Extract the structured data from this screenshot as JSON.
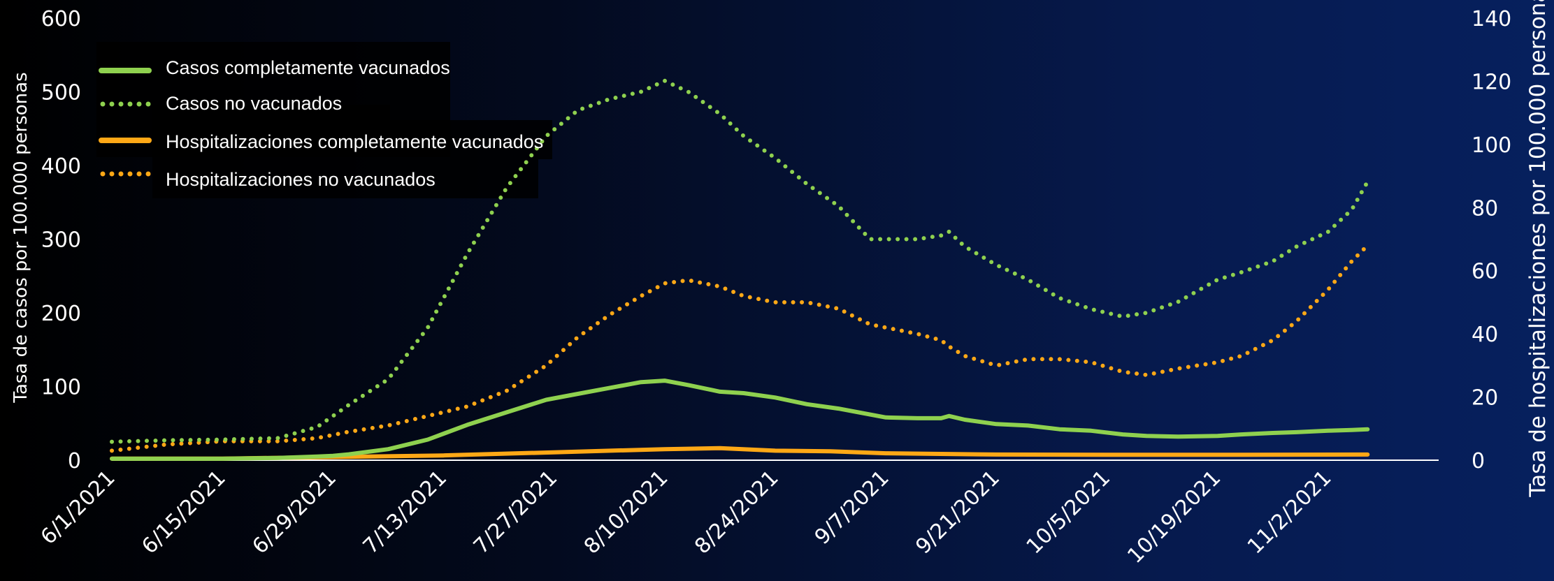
{
  "chart_data": {
    "type": "line",
    "ylabel": "Tasa de casos por 100.000 personas",
    "y2label": "Tasa de hospitalizaciones por 100.000 personas",
    "ylim": [
      0,
      600
    ],
    "y2lim": [
      0,
      140
    ],
    "yticks": [
      "0",
      "100",
      "200",
      "300",
      "400",
      "500",
      "600"
    ],
    "y2ticks": [
      "0",
      "20",
      "40",
      "60",
      "80",
      "100",
      "120",
      "140"
    ],
    "xrange_days": [
      0,
      168
    ],
    "xticks": [
      {
        "day": 0,
        "label": "6/1/2021"
      },
      {
        "day": 14,
        "label": "6/15/2021"
      },
      {
        "day": 28,
        "label": "6/29/2021"
      },
      {
        "day": 42,
        "label": "7/13/2021"
      },
      {
        "day": 56,
        "label": "7/27/2021"
      },
      {
        "day": 70,
        "label": "8/10/2021"
      },
      {
        "day": 84,
        "label": "8/24/2021"
      },
      {
        "day": 98,
        "label": "9/7/2021"
      },
      {
        "day": 112,
        "label": "9/21/2021"
      },
      {
        "day": 126,
        "label": "10/5/2021"
      },
      {
        "day": 140,
        "label": "10/19/2021"
      },
      {
        "day": 154,
        "label": "11/2/2021"
      }
    ],
    "grid": false,
    "legend_position": "top-left",
    "series": [
      {
        "name": "Casos completamente vacunados",
        "axis": "left",
        "color": "#8fd14f",
        "style": "solid",
        "x": [
          0,
          7,
          14,
          21,
          26,
          28,
          30,
          35,
          40,
          45,
          50,
          55,
          59,
          63,
          67,
          70,
          73,
          77,
          80,
          84,
          88,
          92,
          96,
          98,
          102,
          105,
          106,
          108,
          112,
          116,
          120,
          124,
          128,
          131,
          135,
          140,
          143,
          147,
          150,
          154,
          157,
          159
        ],
        "y": [
          2,
          2,
          2,
          3,
          5,
          6,
          8,
          15,
          28,
          48,
          65,
          82,
          90,
          98,
          106,
          108,
          102,
          93,
          91,
          85,
          76,
          70,
          62,
          58,
          57,
          57,
          60,
          55,
          49,
          47,
          42,
          40,
          35,
          33,
          32,
          33,
          35,
          37,
          38,
          40,
          41,
          42
        ]
      },
      {
        "name": "Casos no vacunados",
        "axis": "left",
        "color": "#8fd14f",
        "style": "dotted",
        "x": [
          0,
          7,
          14,
          21,
          26,
          28,
          30,
          35,
          40,
          45,
          50,
          55,
          59,
          63,
          67,
          70,
          73,
          77,
          80,
          84,
          88,
          92,
          96,
          98,
          102,
          105,
          106,
          108,
          112,
          116,
          120,
          124,
          128,
          131,
          135,
          140,
          143,
          147,
          150,
          154,
          157,
          159
        ],
        "y": [
          25,
          27,
          28,
          30,
          45,
          60,
          75,
          110,
          180,
          280,
          370,
          440,
          475,
          490,
          500,
          515,
          500,
          470,
          440,
          410,
          375,
          345,
          300,
          300,
          300,
          305,
          310,
          290,
          265,
          245,
          220,
          205,
          195,
          200,
          215,
          245,
          255,
          270,
          290,
          310,
          340,
          378
        ]
      },
      {
        "name": "Hospitalizaciones completamente vacunados",
        "axis": "right",
        "color": "#ffa816",
        "style": "solid",
        "x": [
          0,
          14,
          28,
          42,
          56,
          70,
          77,
          84,
          91,
          98,
          112,
          126,
          140,
          159
        ],
        "y": [
          0.5,
          0.5,
          1,
          1.5,
          2.5,
          3.5,
          3.8,
          3,
          2.8,
          2.2,
          1.8,
          1.7,
          1.7,
          1.8
        ]
      },
      {
        "name": "Hospitalizaciones no vacunados",
        "axis": "right",
        "color": "#ffa816",
        "style": "dotted",
        "x": [
          0,
          7,
          14,
          21,
          26,
          28,
          30,
          35,
          40,
          45,
          50,
          55,
          59,
          63,
          67,
          70,
          73,
          77,
          80,
          84,
          88,
          92,
          96,
          98,
          102,
          105,
          106,
          108,
          112,
          116,
          120,
          124,
          128,
          131,
          135,
          140,
          143,
          147,
          150,
          154,
          157,
          159
        ],
        "y": [
          3,
          5,
          6,
          6,
          7,
          8,
          9,
          11,
          14,
          17,
          22,
          30,
          39,
          46,
          52,
          56,
          57,
          55,
          52,
          50,
          50,
          48,
          43,
          42,
          40,
          38,
          36,
          33,
          30,
          32,
          32,
          31,
          28,
          27,
          29,
          31,
          33,
          38,
          44,
          54,
          63,
          68
        ]
      }
    ]
  }
}
